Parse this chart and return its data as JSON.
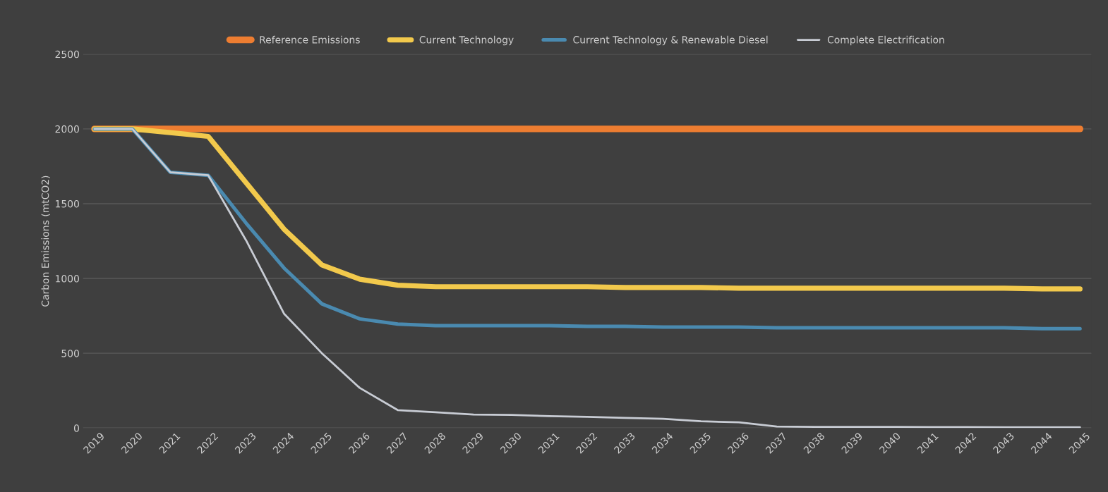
{
  "chart_data": {
    "type": "line",
    "ylabel": "Carbon Emissions (mtCO2)",
    "categories": [
      "2019",
      "2020",
      "2021",
      "2022",
      "2023",
      "2024",
      "2025",
      "2026",
      "2027",
      "2028",
      "2029",
      "2030",
      "2031",
      "2032",
      "2033",
      "2034",
      "2035",
      "2036",
      "2037",
      "2038",
      "2039",
      "2040",
      "2041",
      "2042",
      "2043",
      "2044",
      "2045"
    ],
    "series": [
      {
        "name": "Reference Emissions",
        "color": "#ed7d31",
        "values": [
          2000,
          2000,
          2000,
          2000,
          2000,
          2000,
          2000,
          2000,
          2000,
          2000,
          2000,
          2000,
          2000,
          2000,
          2000,
          2000,
          2000,
          2000,
          2000,
          2000,
          2000,
          2000,
          2000,
          2000,
          2000,
          2000,
          2000
        ]
      },
      {
        "name": "Current Technology",
        "color": "#f2c94c",
        "values": [
          2000,
          2000,
          1975,
          1950,
          1640,
          1330,
          1090,
          995,
          955,
          945,
          945,
          945,
          945,
          945,
          940,
          940,
          940,
          935,
          935,
          935,
          935,
          935,
          935,
          935,
          935,
          930,
          930
        ]
      },
      {
        "name": "Current Technology & Renewable Diesel",
        "color": "#4a8ab0",
        "values": [
          2000,
          2000,
          1710,
          1690,
          1370,
          1070,
          830,
          730,
          695,
          685,
          685,
          685,
          685,
          680,
          680,
          675,
          675,
          675,
          670,
          670,
          670,
          670,
          670,
          670,
          670,
          665,
          665
        ]
      },
      {
        "name": "Complete Electrification",
        "color": "#c8ccd4",
        "values": [
          2000,
          2000,
          1710,
          1690,
          1255,
          765,
          500,
          268,
          120,
          105,
          90,
          88,
          80,
          75,
          68,
          62,
          45,
          38,
          10,
          8,
          8,
          8,
          6,
          6,
          5,
          5,
          5
        ]
      }
    ],
    "ylim": [
      0,
      2500
    ],
    "yticks": [
      0,
      500,
      1000,
      1500,
      2000,
      2500
    ],
    "grid": "y",
    "legend": "top",
    "marker": "none",
    "line_style": "solid"
  }
}
